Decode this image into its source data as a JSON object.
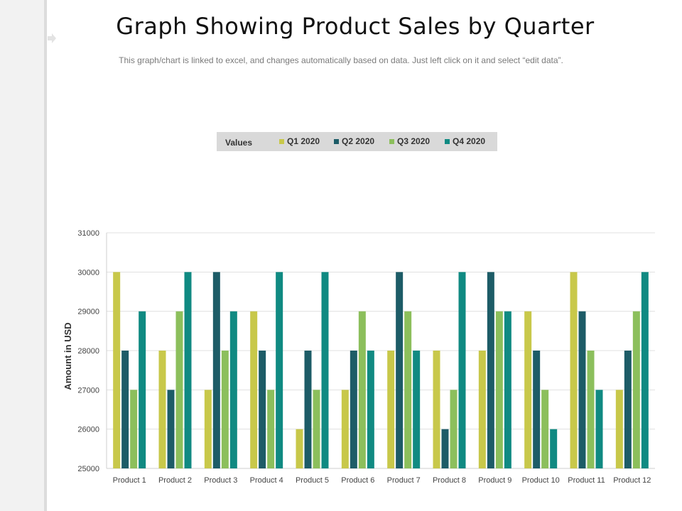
{
  "page": {
    "title": "Graph Showing Product Sales by Quarter",
    "subtitle": "This graph/chart is linked to excel, and changes automatically based on data. Just left click on it and select “edit data”."
  },
  "chart_data": {
    "type": "bar",
    "title": "Graph Showing Product Sales by Quarter",
    "xlabel": "",
    "ylabel": "Amount in USD",
    "ylim": [
      25000,
      31000
    ],
    "yticks": [
      "25000",
      "26000",
      "27000",
      "28000",
      "29000",
      "30000",
      "31000"
    ],
    "grid": true,
    "legend_title": "Values",
    "legend_position": "top-center",
    "categories": [
      "Product 1",
      "Product 2",
      "Product 3",
      "Product 4",
      "Product 5",
      "Product 6",
      "Product 7",
      "Product 8",
      "Product 9",
      "Product 10",
      "Product 11",
      "Product 12"
    ],
    "series": [
      {
        "name": "Q1 2020",
        "color": "#c8c84a",
        "values": [
          30000,
          28000,
          27000,
          29000,
          26000,
          27000,
          28000,
          28000,
          28000,
          29000,
          30000,
          27000
        ]
      },
      {
        "name": "Q2 2020",
        "color": "#1d5c67",
        "values": [
          28000,
          27000,
          30000,
          28000,
          28000,
          28000,
          30000,
          26000,
          30000,
          28000,
          29000,
          28000
        ]
      },
      {
        "name": "Q3 2020",
        "color": "#8cbf5c",
        "values": [
          27000,
          29000,
          28000,
          27000,
          27000,
          29000,
          29000,
          27000,
          29000,
          27000,
          28000,
          29000
        ]
      },
      {
        "name": "Q4 2020",
        "color": "#108a82",
        "values": [
          29000,
          30000,
          29000,
          30000,
          30000,
          28000,
          28000,
          30000,
          29000,
          26000,
          27000,
          30000
        ]
      }
    ]
  }
}
